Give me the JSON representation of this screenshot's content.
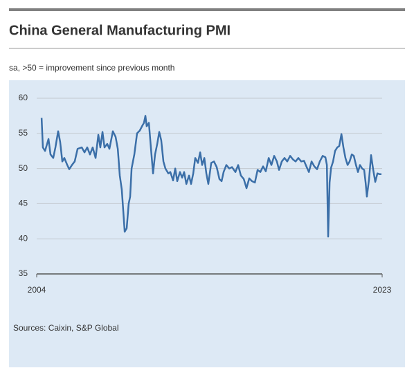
{
  "chart_data": {
    "type": "line",
    "title": "China General Manufacturing PMI",
    "subtitle": "sa, >50 = improvement since previous month",
    "source": "Sources: Caixin, S&P Global",
    "color": "#3b6fa8",
    "grid": true,
    "xlim": [
      2004,
      2023
    ],
    "xticks": [
      2004,
      2023
    ],
    "ylim": [
      35,
      60
    ],
    "yticks": [
      35,
      40,
      45,
      50,
      55,
      60
    ],
    "x": [
      2004.27,
      2004.34,
      2004.46,
      2004.65,
      2004.76,
      2004.91,
      2005.03,
      2005.18,
      2005.29,
      2005.41,
      2005.52,
      2005.68,
      2005.79,
      2005.94,
      2006.09,
      2006.25,
      2006.48,
      2006.63,
      2006.78,
      2006.93,
      2007.08,
      2007.24,
      2007.39,
      2007.5,
      2007.62,
      2007.73,
      2007.88,
      2008.0,
      2008.19,
      2008.34,
      2008.46,
      2008.57,
      2008.68,
      2008.76,
      2008.84,
      2008.95,
      2009.06,
      2009.14,
      2009.22,
      2009.37,
      2009.52,
      2009.67,
      2009.79,
      2009.9,
      2009.98,
      2010.05,
      2010.17,
      2010.28,
      2010.4,
      2010.51,
      2010.63,
      2010.74,
      2010.85,
      2010.97,
      2011.08,
      2011.24,
      2011.35,
      2011.5,
      2011.62,
      2011.73,
      2011.88,
      2012.0,
      2012.11,
      2012.23,
      2012.38,
      2012.49,
      2012.61,
      2012.72,
      2012.87,
      2012.99,
      2013.1,
      2013.22,
      2013.33,
      2013.44,
      2013.6,
      2013.75,
      2013.9,
      2014.05,
      2014.17,
      2014.28,
      2014.43,
      2014.59,
      2014.74,
      2014.93,
      2015.08,
      2015.23,
      2015.39,
      2015.54,
      2015.69,
      2015.84,
      2016.0,
      2016.15,
      2016.3,
      2016.45,
      2016.6,
      2016.76,
      2016.91,
      2017.06,
      2017.21,
      2017.33,
      2017.48,
      2017.63,
      2017.78,
      2017.94,
      2018.09,
      2018.24,
      2018.39,
      2018.55,
      2018.7,
      2018.85,
      2018.97,
      2019.12,
      2019.27,
      2019.42,
      2019.57,
      2019.73,
      2019.88,
      2019.96,
      2020.03,
      2020.11,
      2020.19,
      2020.3,
      2020.41,
      2020.53,
      2020.64,
      2020.76,
      2020.87,
      2020.98,
      2021.1,
      2021.21,
      2021.33,
      2021.44,
      2021.56,
      2021.67,
      2021.78,
      2021.9,
      2022.01,
      2022.09,
      2022.16,
      2022.28,
      2022.39,
      2022.51,
      2022.62,
      2022.74,
      2022.85,
      2022.96
    ],
    "values": [
      57.2,
      53,
      52.5,
      54.2,
      52,
      51.5,
      53,
      55.3,
      53.8,
      51,
      51.5,
      50.5,
      49.9,
      50.5,
      51,
      52.8,
      53,
      52.3,
      53,
      52,
      53,
      51.5,
      54.8,
      53,
      55.2,
      53,
      53.5,
      52.8,
      55.3,
      54.5,
      52.8,
      49,
      47,
      44,
      41,
      41.5,
      45,
      46,
      50,
      52,
      55,
      55.4,
      56,
      56.5,
      57.5,
      56,
      56.5,
      53,
      49.3,
      52,
      53.5,
      55.2,
      54,
      51,
      50,
      49.3,
      49.5,
      48.3,
      50,
      48.2,
      49.5,
      48.7,
      49.5,
      47.8,
      49,
      47.8,
      49.3,
      51.5,
      50.8,
      52.3,
      50.5,
      51.5,
      49.3,
      47.8,
      50.8,
      51,
      50.2,
      48.5,
      48.2,
      49.5,
      50.5,
      50,
      50.2,
      49.5,
      50.5,
      49,
      48.5,
      47.2,
      48.6,
      48.2,
      48,
      49.8,
      49.5,
      50.3,
      49.6,
      51.5,
      50.5,
      51.8,
      51,
      49.8,
      51,
      51.5,
      51,
      51.8,
      51.3,
      51,
      51.5,
      51,
      51.1,
      50.2,
      49.5,
      51,
      50.3,
      49.9,
      51,
      51.8,
      51.6,
      50.5,
      40.3,
      48,
      50.1,
      51,
      52.5,
      53,
      53.2,
      54.9,
      53,
      51.5,
      50.5,
      51,
      52,
      51.8,
      50.5,
      49.5,
      50.5,
      50,
      49.8,
      48,
      46,
      48.5,
      51.9,
      49.8,
      48.1,
      49.3,
      49.2,
      49.2
    ]
  }
}
